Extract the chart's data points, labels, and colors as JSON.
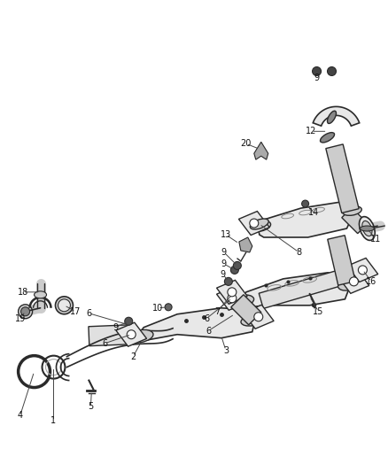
{
  "bg_color": "#ffffff",
  "fig_width": 4.38,
  "fig_height": 5.33,
  "dpi": 100,
  "line_color": "#2a2a2a",
  "fill_light": "#e8e8e8",
  "fill_mid": "#cccccc",
  "fill_dark": "#999999",
  "label_fontsize": 7.0,
  "label_color": "#111111"
}
